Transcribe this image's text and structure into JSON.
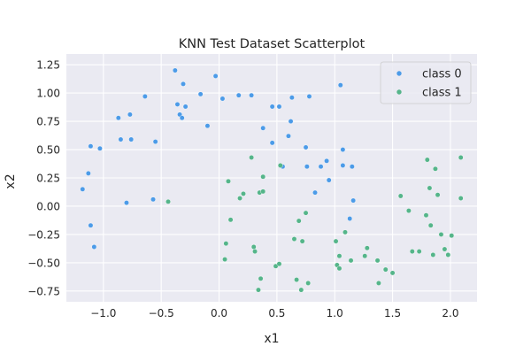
{
  "chart_data": {
    "type": "scatter",
    "title": "KNN Test Dataset Scatterplot",
    "xlabel": "x1",
    "ylabel": "x2",
    "xlim": [
      -1.32,
      2.23
    ],
    "ylim": [
      -0.845,
      1.345
    ],
    "xticks": [
      -1.0,
      -0.5,
      0.0,
      0.5,
      1.0,
      1.5,
      2.0
    ],
    "yticks": [
      -0.75,
      -0.5,
      -0.25,
      0.0,
      0.25,
      0.5,
      0.75,
      1.0,
      1.25
    ],
    "xtick_labels": [
      "−1.0",
      "−0.5",
      "0.0",
      "0.5",
      "1.0",
      "1.5",
      "2.0"
    ],
    "ytick_labels": [
      "−0.75",
      "−0.50",
      "−0.25",
      "0.00",
      "0.25",
      "0.50",
      "0.75",
      "1.00",
      "1.25"
    ],
    "grid": true,
    "legend_position": "top-right",
    "series": [
      {
        "name": "class 0",
        "color": "#4c9be8",
        "points": [
          [
            -1.18,
            0.15
          ],
          [
            -1.13,
            0.29
          ],
          [
            -1.11,
            0.53
          ],
          [
            -1.11,
            -0.17
          ],
          [
            -1.08,
            -0.36
          ],
          [
            -1.03,
            0.51
          ],
          [
            -0.87,
            0.78
          ],
          [
            -0.85,
            0.59
          ],
          [
            -0.8,
            0.03
          ],
          [
            -0.77,
            0.81
          ],
          [
            -0.76,
            0.59
          ],
          [
            -0.64,
            0.97
          ],
          [
            -0.57,
            0.06
          ],
          [
            -0.55,
            0.57
          ],
          [
            -0.38,
            1.2
          ],
          [
            -0.36,
            0.9
          ],
          [
            -0.34,
            0.81
          ],
          [
            -0.32,
            0.78
          ],
          [
            -0.31,
            1.08
          ],
          [
            -0.29,
            0.88
          ],
          [
            -0.16,
            0.99
          ],
          [
            -0.1,
            0.71
          ],
          [
            -0.03,
            1.15
          ],
          [
            0.03,
            0.95
          ],
          [
            0.17,
            0.98
          ],
          [
            0.28,
            0.98
          ],
          [
            0.38,
            0.69
          ],
          [
            0.46,
            0.88
          ],
          [
            0.46,
            0.56
          ],
          [
            0.52,
            0.88
          ],
          [
            0.55,
            0.35
          ],
          [
            0.6,
            0.62
          ],
          [
            0.62,
            0.75
          ],
          [
            0.63,
            0.96
          ],
          [
            0.75,
            0.52
          ],
          [
            0.76,
            0.35
          ],
          [
            0.78,
            0.97
          ],
          [
            0.83,
            0.12
          ],
          [
            0.88,
            0.35
          ],
          [
            0.93,
            0.4
          ],
          [
            0.95,
            0.23
          ],
          [
            1.05,
            1.07
          ],
          [
            1.07,
            0.5
          ],
          [
            1.07,
            0.36
          ],
          [
            1.13,
            -0.11
          ],
          [
            1.15,
            0.35
          ],
          [
            1.16,
            0.05
          ]
        ]
      },
      {
        "name": "class 1",
        "color": "#55b58a",
        "points": [
          [
            -0.44,
            0.04
          ],
          [
            0.05,
            -0.47
          ],
          [
            0.06,
            -0.33
          ],
          [
            0.08,
            0.22
          ],
          [
            0.1,
            -0.12
          ],
          [
            0.18,
            0.07
          ],
          [
            0.21,
            0.11
          ],
          [
            0.28,
            0.43
          ],
          [
            0.3,
            -0.36
          ],
          [
            0.31,
            -0.4
          ],
          [
            0.34,
            -0.74
          ],
          [
            0.35,
            0.12
          ],
          [
            0.36,
            -0.64
          ],
          [
            0.38,
            0.13
          ],
          [
            0.38,
            0.26
          ],
          [
            0.49,
            -0.53
          ],
          [
            0.52,
            -0.51
          ],
          [
            0.53,
            0.36
          ],
          [
            0.65,
            -0.29
          ],
          [
            0.67,
            -0.65
          ],
          [
            0.69,
            -0.13
          ],
          [
            0.71,
            -0.74
          ],
          [
            0.72,
            -0.31
          ],
          [
            0.75,
            -0.06
          ],
          [
            0.77,
            -0.68
          ],
          [
            1.01,
            -0.31
          ],
          [
            1.02,
            -0.52
          ],
          [
            1.04,
            -0.55
          ],
          [
            1.04,
            -0.44
          ],
          [
            1.09,
            -0.23
          ],
          [
            1.14,
            -0.48
          ],
          [
            1.26,
            -0.44
          ],
          [
            1.28,
            -0.37
          ],
          [
            1.37,
            -0.48
          ],
          [
            1.38,
            -0.68
          ],
          [
            1.44,
            -0.56
          ],
          [
            1.5,
            -0.59
          ],
          [
            1.57,
            0.09
          ],
          [
            1.64,
            -0.04
          ],
          [
            1.67,
            -0.4
          ],
          [
            1.73,
            -0.4
          ],
          [
            1.79,
            -0.08
          ],
          [
            1.8,
            0.41
          ],
          [
            1.82,
            0.16
          ],
          [
            1.83,
            -0.17
          ],
          [
            1.85,
            -0.43
          ],
          [
            1.87,
            0.33
          ],
          [
            1.89,
            0.1
          ],
          [
            1.92,
            -0.25
          ],
          [
            1.95,
            -0.38
          ],
          [
            1.98,
            -0.43
          ],
          [
            2.01,
            -0.26
          ],
          [
            2.09,
            0.43
          ],
          [
            2.09,
            0.07
          ]
        ]
      }
    ]
  }
}
